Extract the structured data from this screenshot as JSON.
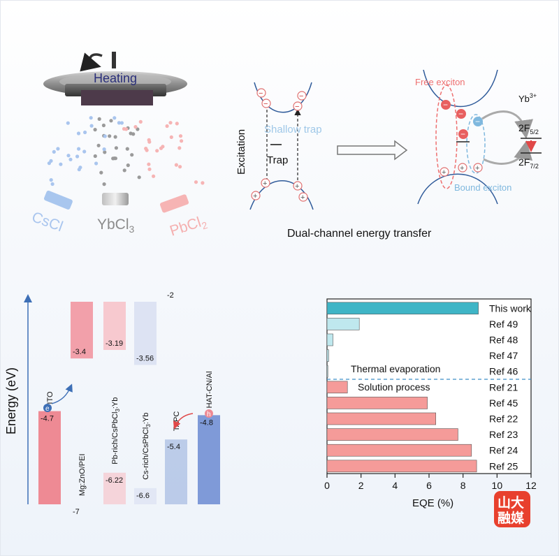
{
  "panel_a": {
    "heating_label": "Heating",
    "sources": [
      "CsCl",
      "YbCl",
      "PbCl"
    ],
    "yb_sub": "3",
    "pb_sub": "2"
  },
  "panel_b": {
    "excitation_label": "Excitation",
    "shallow_trap_label": "Shallow trap",
    "trap_label": "Trap",
    "free_exciton_label": "Free exciton",
    "bound_exciton_label": "Bound exciton",
    "yb_ion_label": "Yb",
    "yb_ion_sup": "3+",
    "level_upper": "2F",
    "level_upper_sub": "5/2",
    "level_lower": "2F",
    "level_lower_sub": "7/2",
    "caption": "Dual-channel  energy transfer"
  },
  "panel_c": {
    "axis_label": "Energy (eV)",
    "layers": [
      {
        "name": "ITO",
        "top": "-4.7",
        "bottom": null,
        "color": "#ee8a94"
      },
      {
        "name": "Mg:ZnO/PEI",
        "top": "-3.4",
        "bottom": "-7",
        "color": "#f2a0aa"
      },
      {
        "name": "Pb-rich/CsPbCl",
        "name_sub": "3",
        "name_suffix": ":Yb",
        "top": "-3.19",
        "bottom": "-6.22",
        "color": "#f7c9cf"
      },
      {
        "name": "Cs-rich/CsPbCl",
        "name_sub": "3",
        "name_suffix": ":Yb",
        "top": "-3.56",
        "bottom": "-6.6",
        "color": "#dde3f3"
      },
      {
        "name": "TAPC",
        "top": "-2",
        "bottom": "-5.4",
        "color": "#a9bde3"
      },
      {
        "name": "HAT-CN/Al",
        "top": "-4.8",
        "bottom": null,
        "color": "#7f9ad8"
      }
    ],
    "electron_symbol": "e",
    "hole_symbol": "h"
  },
  "chart_data": {
    "type": "bar",
    "orientation": "horizontal",
    "categories": [
      "This work",
      "Ref 49",
      "Ref 48",
      "Ref 47",
      "Ref 46",
      "Ref 21",
      "Ref 45",
      "Ref 22",
      "Ref 23",
      "Ref 24",
      "Ref 25"
    ],
    "values": [
      8.9,
      1.9,
      0.35,
      0.1,
      0.05,
      1.2,
      5.9,
      6.4,
      7.7,
      8.5,
      8.8
    ],
    "colors": [
      "#3fb5c6",
      "#bfe8ee",
      "#bfe8ee",
      "#bfe8ee",
      "#bfe8ee",
      "#f59b99",
      "#f59b99",
      "#f59b99",
      "#f59b99",
      "#f59b99",
      "#f59b99"
    ],
    "xlabel": "EQE (%)",
    "xlim": [
      0,
      12
    ],
    "xticks": [
      "0",
      "2",
      "4",
      "6",
      "8",
      "10",
      "12"
    ],
    "group_labels": [
      "Thermal evaporation",
      "Solution process"
    ],
    "grid": false
  },
  "watermark": {
    "text_line1": "山大",
    "text_line2": "融媒",
    "color": "#e8402d"
  }
}
